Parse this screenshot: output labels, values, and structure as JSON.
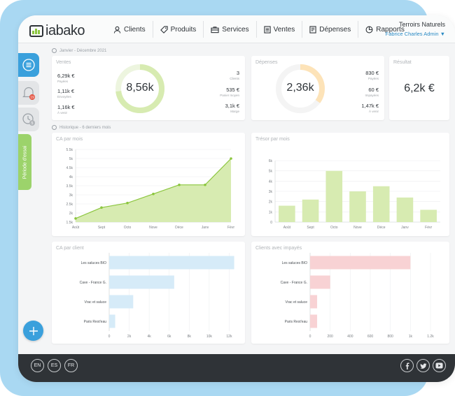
{
  "brand": {
    "name": "iabako"
  },
  "nav": [
    {
      "label": "Clients",
      "icon": "user-icon"
    },
    {
      "label": "Produits",
      "icon": "tag-icon"
    },
    {
      "label": "Services",
      "icon": "toolbox-icon"
    },
    {
      "label": "Ventes",
      "icon": "receipt-icon"
    },
    {
      "label": "Dépenses",
      "icon": "document-icon"
    },
    {
      "label": "Rapports",
      "icon": "pie-chart-icon"
    }
  ],
  "org": {
    "name": "Terroirs Naturels",
    "user": "Fabrice Charles Admin ▼"
  },
  "sidebar": {
    "trial_label": "Période d'essai",
    "notification_count": "19",
    "history_count": "5"
  },
  "summary": {
    "period_label": "Janvier - Décembre 2021",
    "ventes": {
      "title": "Ventes",
      "total": "8,56k",
      "items_left": [
        {
          "value": "6,29k €",
          "label": "Payées"
        },
        {
          "value": "1,11k €",
          "label": "Envoyées"
        },
        {
          "value": "1,16k €",
          "label": "À venir"
        }
      ],
      "items_right": [
        {
          "value": "3",
          "label": "Clients"
        },
        {
          "value": "535 €",
          "label": "Panier moyen"
        },
        {
          "value": "3,1k €",
          "label": "Marge"
        }
      ],
      "ring_fraction": 0.73
    },
    "depenses": {
      "title": "Dépenses",
      "total": "2,36k",
      "items_right": [
        {
          "value": "830 €",
          "label": "Payées"
        },
        {
          "value": "60 €",
          "label": "Impayées"
        },
        {
          "value": "1,47k €",
          "label": "À venir"
        }
      ],
      "ring_fraction": 0.35
    },
    "resultat": {
      "title": "Résultat",
      "value": "6,2k €"
    }
  },
  "history": {
    "label": "Historique - 6 derniers mois"
  },
  "colors": {
    "green": "#8cc63f",
    "green_fill": "#d7ebb1",
    "blue_bar": "#d6ebf8",
    "red_bar": "#f8d2d4",
    "orange": "#fde3b8",
    "accent": "#3aa0dc"
  },
  "chart_data": [
    {
      "type": "area",
      "title": "CA par mois",
      "categories": [
        "Août",
        "Sept",
        "Octo",
        "Nove",
        "Déce",
        "Janv",
        "Févr"
      ],
      "values": [
        1700,
        2300,
        2550,
        3050,
        3550,
        3550,
        5000
      ],
      "yticks": [
        "1.5k",
        "2k",
        "2.5k",
        "3k",
        "3.5k",
        "4k",
        "4.5k",
        "5k",
        "5.5k"
      ],
      "ylim": [
        1500,
        5500
      ]
    },
    {
      "type": "bar",
      "title": "Trésor par mois",
      "categories": [
        "Août",
        "Sept",
        "Octo",
        "Nove",
        "Déce",
        "Janv",
        "Févr"
      ],
      "values": [
        1600,
        2200,
        5000,
        3000,
        3500,
        2400,
        1200
      ],
      "yticks": [
        "0",
        "1k",
        "2k",
        "3k",
        "4k",
        "5k",
        "6k"
      ],
      "ylim": [
        0,
        6000
      ]
    },
    {
      "type": "bar",
      "orientation": "horizontal",
      "title": "CA par client",
      "categories": [
        "Les saluces BIO",
        "Cave - France G.",
        "Vrac et saluce",
        "Paris Rest'eau"
      ],
      "values": [
        12500,
        6500,
        2400,
        600
      ],
      "xticks": [
        "0",
        "2k",
        "4k",
        "6k",
        "8k",
        "10k",
        "12k",
        "14k"
      ],
      "xlim": [
        0,
        14000
      ]
    },
    {
      "type": "bar",
      "orientation": "horizontal",
      "title": "Clients avec impayés",
      "categories": [
        "Les saluces BIO",
        "Cave - France G.",
        "Vrac et saluce",
        "Paris Rest'eau"
      ],
      "values": [
        1000,
        200,
        70,
        70
      ],
      "xticks": [
        "0",
        "200",
        "400",
        "600",
        "800",
        "1k",
        "1.2k"
      ],
      "xlim": [
        0,
        1200
      ]
    }
  ],
  "footer": {
    "languages": [
      "EN",
      "ES",
      "FR"
    ],
    "social": [
      "facebook-icon",
      "twitter-icon",
      "youtube-icon"
    ]
  }
}
